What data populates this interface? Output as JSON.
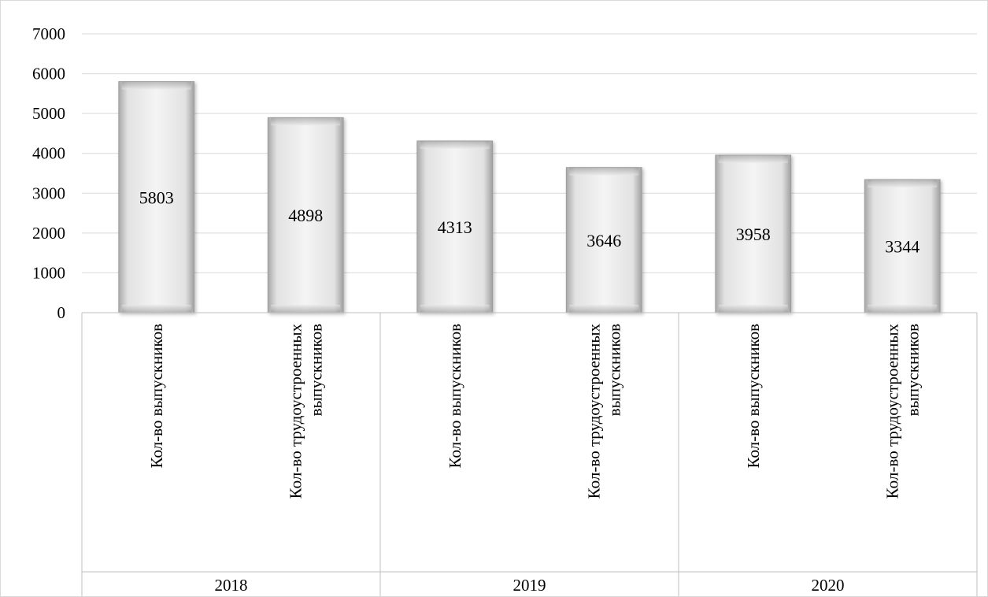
{
  "chart_data": {
    "type": "bar",
    "title": "",
    "xlabel": "",
    "ylabel": "",
    "ylim": [
      0,
      7000
    ],
    "yticks": [
      0,
      1000,
      2000,
      3000,
      4000,
      5000,
      6000,
      7000
    ],
    "grid": true,
    "legend": "none",
    "groups": [
      {
        "year": "2018",
        "bars": [
          {
            "category": [
              "Кол-во выпускников"
            ],
            "value": 5803
          },
          {
            "category": [
              "Кол-во трудоустроенных",
              "выпускников"
            ],
            "value": 4898
          }
        ]
      },
      {
        "year": "2019",
        "bars": [
          {
            "category": [
              "Кол-во выпускников"
            ],
            "value": 4313
          },
          {
            "category": [
              "Кол-во трудоустроенных",
              "выпускников"
            ],
            "value": 3646
          }
        ]
      },
      {
        "year": "2020",
        "bars": [
          {
            "category": [
              "Кол-во выпускников"
            ],
            "value": 3958
          },
          {
            "category": [
              "Кол-во трудоустроенных",
              "выпускников"
            ],
            "value": 3344
          }
        ]
      }
    ],
    "colors": {
      "bar_fill_light": "#f7f7f7",
      "bar_fill_dark": "#9a9a9a",
      "bar_face": "#ececec",
      "grid": "#d9d9d9"
    }
  }
}
